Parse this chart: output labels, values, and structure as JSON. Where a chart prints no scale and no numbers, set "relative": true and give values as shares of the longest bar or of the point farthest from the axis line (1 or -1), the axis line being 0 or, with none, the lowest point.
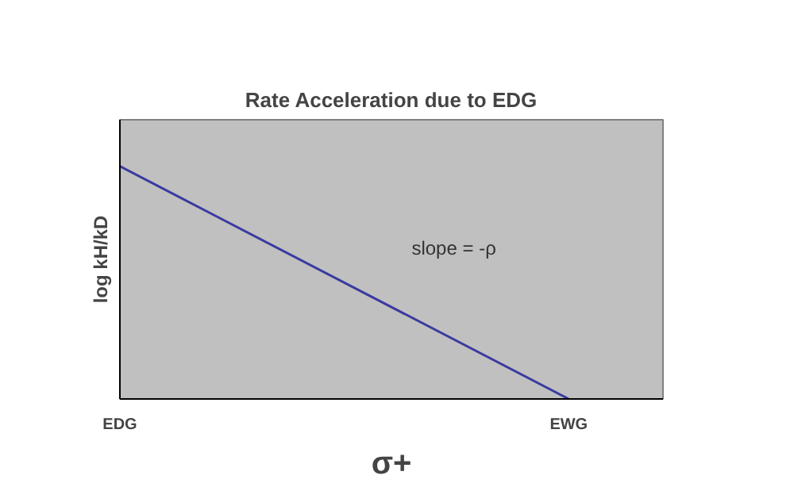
{
  "chart_data": {
    "type": "line",
    "title": "Rate Acceleration due to EDG",
    "xlabel": "σ+",
    "ylabel": "log kH/kD",
    "categories": [
      "EDG",
      "EWG"
    ],
    "relative": true,
    "series": [
      {
        "color": "#3a3aa0",
        "values": [
          1,
          0
        ]
      }
    ],
    "annotations": [
      "slope = -ρ"
    ],
    "grid": false
  }
}
